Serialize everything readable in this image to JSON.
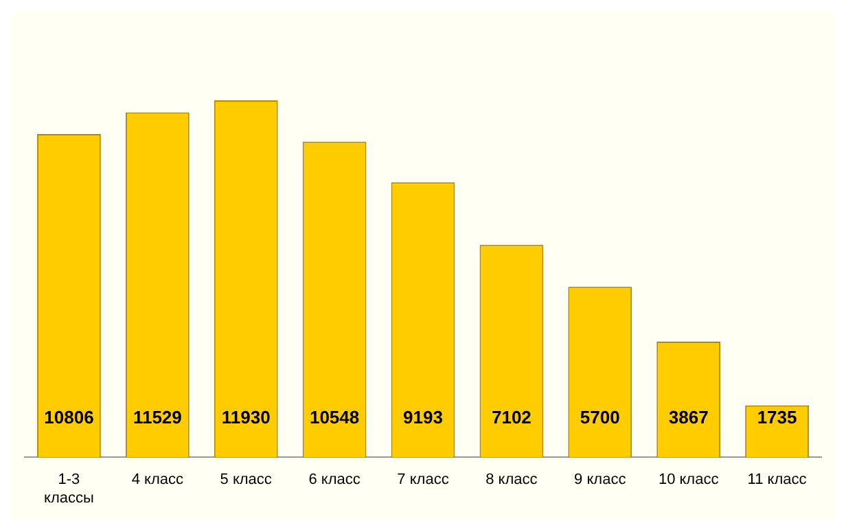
{
  "chart_data": {
    "type": "bar",
    "categories": [
      "1-3 классы",
      "4 класс",
      "5 класс",
      "6 класс",
      "7 класс",
      "8 класс",
      "9 класс",
      "10 класс",
      "11 класс"
    ],
    "values": [
      10806,
      11529,
      11930,
      10548,
      9193,
      7102,
      5700,
      3867,
      1735
    ],
    "color": "#ffcc00",
    "data_labels": true,
    "legend": false
  }
}
